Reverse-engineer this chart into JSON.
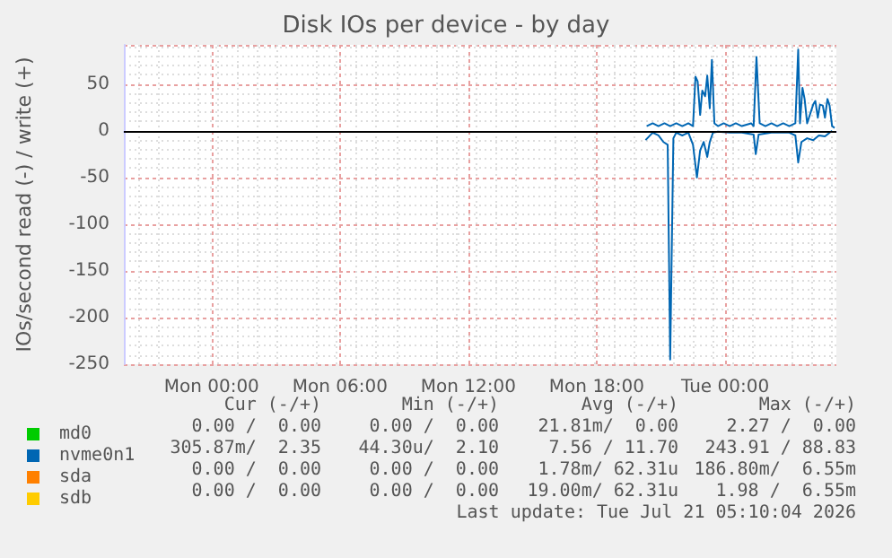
{
  "chart_data": {
    "type": "line",
    "title": "Disk IOs per device - by day",
    "ylabel": "IOs/second read (-) / write (+)",
    "xlim": [
      "2026-07-19T19:54",
      "2026-07-21T05:12"
    ],
    "xticks": [
      {
        "value": "2026-07-20T00:00",
        "label": "Mon 00:00"
      },
      {
        "value": "2026-07-20T06:00",
        "label": "Mon 06:00"
      },
      {
        "value": "2026-07-20T12:00",
        "label": "Mon 12:00"
      },
      {
        "value": "2026-07-20T18:00",
        "label": "Mon 18:00"
      },
      {
        "value": "2026-07-21T00:00",
        "label": "Tue 00:00"
      }
    ],
    "ylim": [
      -250,
      92
    ],
    "yticks": [
      -250,
      -200,
      -150,
      -100,
      -50,
      0,
      50
    ],
    "grid": true,
    "legend": "bottom left",
    "marker": "none",
    "line_style": "solid",
    "ref_lines": [
      {
        "axis": "y",
        "value": 0,
        "color": "#000000"
      }
    ],
    "series": [
      {
        "name": "md0",
        "color": "#00cc00"
      },
      {
        "name": "nvme0n1",
        "color": "#0066b3",
        "x": [
          "2026-07-20T20:20",
          "2026-07-20T20:37",
          "2026-07-20T20:53",
          "2026-07-20T21:10",
          "2026-07-20T21:26",
          "2026-07-20T21:43",
          "2026-07-20T22:00",
          "2026-07-20T22:17",
          "2026-07-20T22:30",
          "2026-07-20T22:37",
          "2026-07-20T22:43",
          "2026-07-20T22:50",
          "2026-07-20T22:56",
          "2026-07-20T23:04",
          "2026-07-20T23:10",
          "2026-07-20T23:17",
          "2026-07-20T23:23",
          "2026-07-20T23:30",
          "2026-07-20T23:40",
          "2026-07-20T23:56",
          "2026-07-21T00:13",
          "2026-07-21T00:30",
          "2026-07-21T00:47",
          "2026-07-21T01:13",
          "2026-07-21T01:20",
          "2026-07-21T01:28",
          "2026-07-21T01:37",
          "2026-07-21T01:53",
          "2026-07-21T02:10",
          "2026-07-21T02:26",
          "2026-07-21T02:43",
          "2026-07-21T03:00",
          "2026-07-21T03:17",
          "2026-07-21T03:25",
          "2026-07-21T03:30",
          "2026-07-21T03:37",
          "2026-07-21T03:43",
          "2026-07-21T03:50",
          "2026-07-21T04:07",
          "2026-07-21T04:13",
          "2026-07-21T04:20",
          "2026-07-21T04:26",
          "2026-07-21T04:34",
          "2026-07-21T04:40",
          "2026-07-21T04:47",
          "2026-07-21T04:53",
          "2026-07-21T05:00",
          "2026-07-21T05:07"
        ],
        "values": [
          5,
          8,
          5,
          8,
          5,
          8,
          5,
          8,
          5,
          58,
          53,
          17,
          43,
          37,
          59,
          24,
          76,
          8,
          5,
          8,
          5,
          8,
          5,
          8,
          5,
          79,
          8,
          5,
          8,
          5,
          8,
          5,
          8,
          87,
          8,
          46,
          34,
          8,
          28,
          32,
          14,
          28,
          27,
          14,
          34,
          27,
          5,
          3
        ]
      },
      {
        "color": "#0066b3",
        "x": [
          "2026-07-20T20:17",
          "2026-07-20T20:37",
          "2026-07-20T20:53",
          "2026-07-20T21:07",
          "2026-07-20T21:19",
          "2026-07-20T21:26",
          "2026-07-20T21:35",
          "2026-07-20T21:43",
          "2026-07-20T22:00",
          "2026-07-20T22:17",
          "2026-07-20T22:30",
          "2026-07-20T22:41",
          "2026-07-20T22:50",
          "2026-07-20T23:00",
          "2026-07-20T23:10",
          "2026-07-20T23:17",
          "2026-07-20T23:26",
          "2026-07-20T23:40",
          "2026-07-21T00:13",
          "2026-07-21T00:47",
          "2026-07-21T01:20",
          "2026-07-21T01:26",
          "2026-07-21T01:34",
          "2026-07-21T02:10",
          "2026-07-21T03:00",
          "2026-07-21T03:17",
          "2026-07-21T03:25",
          "2026-07-21T03:34",
          "2026-07-21T03:50",
          "2026-07-21T04:07",
          "2026-07-21T04:23",
          "2026-07-21T04:40",
          "2026-07-21T05:00"
        ],
        "values": [
          -10,
          -2,
          -5,
          -12,
          -15,
          -245,
          -8,
          -2,
          -5,
          -2,
          -15,
          -50,
          -21,
          -12,
          -28,
          -12,
          -2,
          -1,
          -2,
          -2,
          -4,
          -25,
          -4,
          -2,
          -2,
          -5,
          -34,
          -12,
          -8,
          -10,
          -5,
          -6,
          0
        ]
      },
      {
        "name": "sda",
        "color": "#ff8000"
      },
      {
        "name": "sdb",
        "color": "#ffcc00"
      }
    ],
    "annotations": [
      "Cur (-/+)",
      "Min (-/+)",
      "Avg (-/+)",
      "Max (-/+)",
      "0.00 /  0.00",
      "0.00 /  0.00",
      "21.81m/  0.00",
      "2.27 /  0.00",
      "305.87m/  2.35",
      "44.30u/  2.10",
      "7.56 / 11.70",
      "243.91 / 88.83",
      "0.00 /  0.00",
      "0.00 /  0.00",
      "1.78m/ 62.31u",
      "186.80m/  6.55m",
      "0.00 /  0.00",
      "0.00 /  0.00",
      "19.00m/ 62.31u",
      "1.98 /  6.55m",
      "Last update: Tue Jul 21 05:10:04 2026"
    ]
  }
}
